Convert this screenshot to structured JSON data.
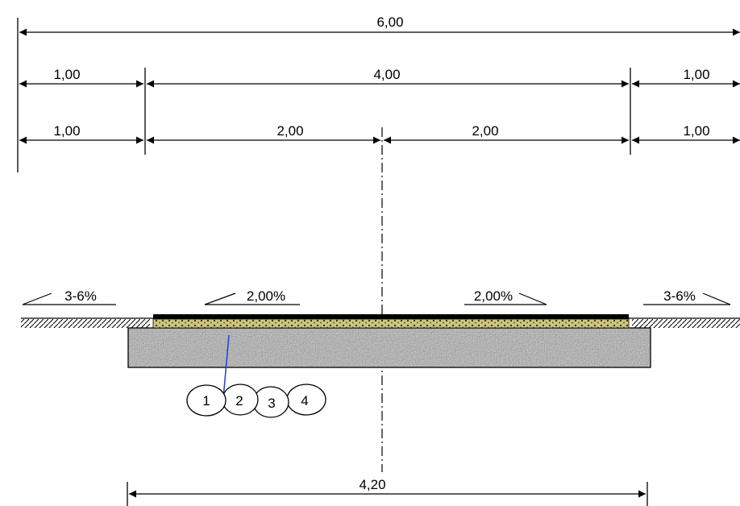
{
  "dimensions": {
    "overall_width": "6,00",
    "left_shoulder_upper": "1,00",
    "carriageway_width": "4,00",
    "right_shoulder_upper": "1,00",
    "left_shoulder_lower": "1,00",
    "left_lane_width": "2,00",
    "right_lane_width": "2,00",
    "right_shoulder_lower": "1,00",
    "base_width": "4,20"
  },
  "slopes": {
    "left_shoulder": "3-6%",
    "left_lane": "2,00%",
    "right_lane": "2,00%",
    "right_shoulder": "3-6%"
  },
  "layers": {
    "labels": [
      "1",
      "2",
      "3",
      "4"
    ]
  },
  "colors": {
    "line": "#000000",
    "leader": "#1f3fd1",
    "base_fill": "#a7a7a7",
    "gravel_fill": "#cfc777",
    "surface": "#000000"
  }
}
